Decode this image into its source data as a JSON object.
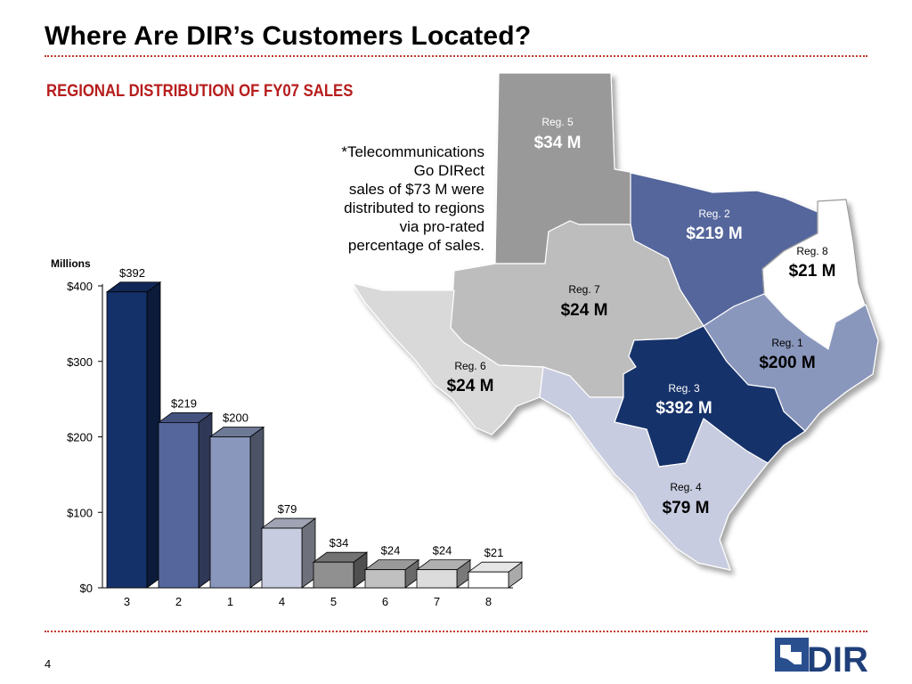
{
  "header": {
    "title": "Where Are DIR’s Customers Located?",
    "subtitle": "REGIONAL DISTRIBUTION OF FY07 SALES"
  },
  "note": {
    "lines": [
      "*Telecommunications",
      "Go DIRect",
      "sales of $73 M were",
      "distributed to regions",
      "via pro-rated",
      "percentage of sales."
    ]
  },
  "chart_data": {
    "type": "bar",
    "ylabel": "Millions",
    "ylim": [
      0,
      400
    ],
    "yticks": [
      "$0",
      "$100",
      "$200",
      "$300",
      "$400"
    ],
    "categories": [
      "3",
      "2",
      "1",
      "4",
      "5",
      "6",
      "7",
      "8"
    ],
    "values": [
      392,
      219,
      200,
      79,
      34,
      24,
      24,
      21
    ],
    "data_labels": [
      "$392",
      "$219",
      "$200",
      "$79",
      "$34",
      "$24",
      "$24",
      "$21"
    ],
    "colors": [
      "#15316a",
      "#55669c",
      "#8a97bc",
      "#c8cce0",
      "#909090",
      "#c0c0c0",
      "#dcdcdc",
      "#ffffff"
    ],
    "grid": false,
    "style": "3d"
  },
  "map": {
    "regions": [
      {
        "id": "5",
        "label": "Reg. 5",
        "value": "$34 M",
        "color": "#999999"
      },
      {
        "id": "2",
        "label": "Reg. 2",
        "value": "$219 M",
        "color": "#55669c"
      },
      {
        "id": "8",
        "label": "Reg. 8",
        "value": "$21 M",
        "color": "#ffffff"
      },
      {
        "id": "7",
        "label": "Reg. 7",
        "value": "$24 M",
        "color": "#bdbdbd"
      },
      {
        "id": "1",
        "label": "Reg. 1",
        "value": "$200 M",
        "color": "#8a97bc"
      },
      {
        "id": "6",
        "label": "Reg. 6",
        "value": "$24 M",
        "color": "#d9d9d9"
      },
      {
        "id": "3",
        "label": "Reg. 3",
        "value": "$392 M",
        "color": "#15316a"
      },
      {
        "id": "4",
        "label": "Reg. 4",
        "value": "$79 M",
        "color": "#c8cce0"
      }
    ]
  },
  "footer": {
    "page_number": "4",
    "logo_text": "DIR"
  }
}
